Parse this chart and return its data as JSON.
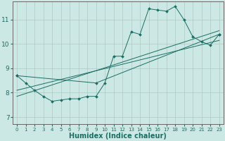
{
  "background_color": "#cce8e4",
  "grid_color": "#b0c8c4",
  "line_color": "#1a6e64",
  "marker_color": "#1a6e64",
  "xlabel": "Humidex (Indice chaleur)",
  "xlabel_fontsize": 7,
  "ytick_labels": [
    "7",
    "8",
    "9",
    "10",
    "11"
  ],
  "yticks": [
    7,
    8,
    9,
    10,
    11
  ],
  "xticks": [
    0,
    1,
    2,
    3,
    4,
    5,
    6,
    7,
    8,
    9,
    10,
    11,
    12,
    13,
    14,
    15,
    16,
    17,
    18,
    19,
    20,
    21,
    22,
    23
  ],
  "xlim": [
    -0.5,
    23.5
  ],
  "ylim": [
    6.7,
    11.75
  ],
  "series": [
    {
      "x": [
        0,
        1,
        2,
        3,
        4,
        5,
        6,
        7,
        8,
        9,
        10,
        11,
        12,
        13,
        14,
        15,
        16,
        17,
        18,
        19,
        20,
        21,
        22,
        23
      ],
      "y": [
        8.7,
        8.4,
        8.1,
        7.85,
        7.65,
        7.7,
        7.75,
        7.75,
        7.85,
        7.85,
        8.4,
        9.5,
        9.5,
        10.5,
        10.4,
        11.45,
        11.4,
        11.35,
        11.55,
        11.0,
        10.3,
        10.1,
        9.95,
        10.4
      ],
      "has_markers": true
    },
    {
      "x": [
        0,
        9,
        23
      ],
      "y": [
        8.7,
        8.4,
        10.4
      ],
      "has_markers": true
    },
    {
      "x": [
        0,
        23
      ],
      "y": [
        8.1,
        10.15
      ],
      "has_markers": false
    },
    {
      "x": [
        0,
        23
      ],
      "y": [
        7.85,
        10.55
      ],
      "has_markers": false
    }
  ]
}
